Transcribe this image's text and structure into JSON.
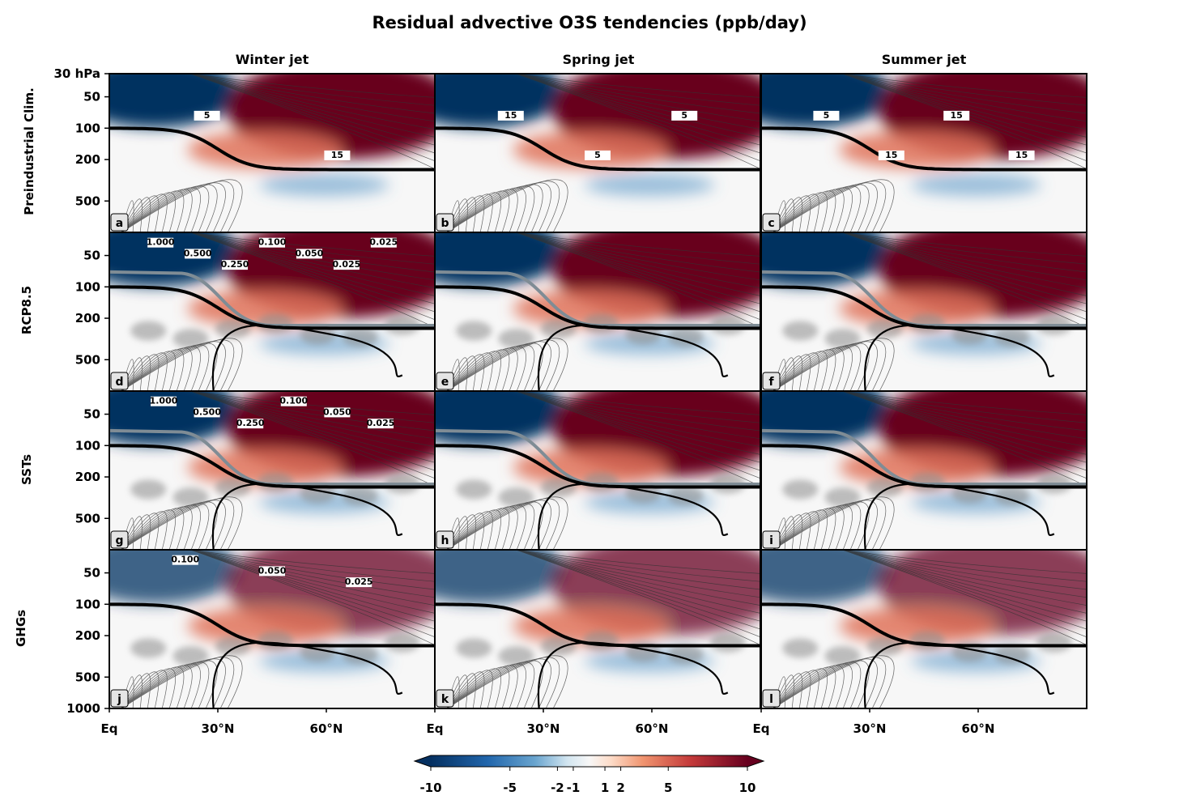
{
  "figure": {
    "title": "Residual advective O3S tendencies (ppb/day)",
    "columns": [
      "Winter jet",
      "Spring jet",
      "Summer jet"
    ],
    "rows": [
      "Preindustrial Clim.",
      "RCP8.5",
      "SSTs",
      "GHGs"
    ],
    "panel_labels": [
      "a",
      "b",
      "c",
      "d",
      "e",
      "f",
      "g",
      "h",
      "i",
      "j",
      "k",
      "l"
    ]
  },
  "chart_data": {
    "type": "heatmap",
    "title": "Residual advective O3S tendencies (ppb/day)",
    "xlabel": "",
    "ylabel": "",
    "x_ticks": [
      "Eq",
      "30°N",
      "60°N"
    ],
    "x_tick_values": [
      0,
      30,
      60
    ],
    "xlim": [
      0,
      90
    ],
    "y_ticks": [
      "30 hPa",
      "50",
      "100",
      "200",
      "500",
      "1000"
    ],
    "y_tick_values": [
      30,
      50,
      100,
      200,
      500,
      1000
    ],
    "ylim": [
      1000,
      30
    ],
    "y_scale": "log",
    "colorbar": {
      "ticks": [
        "-10",
        "-5",
        "-2",
        "-1",
        "1",
        "2",
        "5",
        "10"
      ],
      "tick_values": [
        -10,
        -5,
        -2,
        -1,
        1,
        2,
        5,
        10
      ],
      "colormap": "RdBu_r",
      "extend": "both",
      "colors": {
        "neg_max": "#053061",
        "neg_mid": "#4a8ec2",
        "zero": "#f7f7f7",
        "pos_mid": "#e0735a",
        "pos_max": "#67001f"
      }
    },
    "contour_labels": {
      "a": [
        "5",
        "15"
      ],
      "b": [
        "15",
        "5",
        "5"
      ],
      "c": [
        "5",
        "15",
        "15",
        "15"
      ],
      "d": [
        "1.000",
        "0.500",
        "0.250",
        "0.100",
        "0.050",
        "0.025",
        "0.025"
      ],
      "g": [
        "1.000",
        "0.500",
        "0.250",
        "0.100",
        "0.050",
        "0.025"
      ],
      "j": [
        "0.100",
        "0.050",
        "0.025"
      ]
    },
    "tropopause_lines": [
      "black",
      "grey"
    ]
  }
}
